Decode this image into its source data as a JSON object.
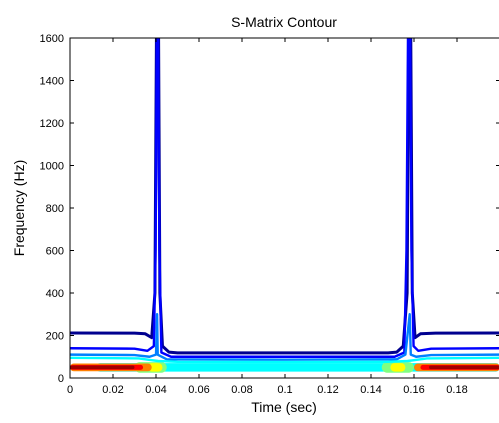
{
  "chart_data": {
    "type": "contour",
    "title": "S-Matrix Contour",
    "xlabel": "Time (sec)",
    "ylabel": "Frequency (Hz)",
    "xlim": [
      0,
      0.2
    ],
    "ylim": [
      0,
      1600
    ],
    "xticks": [
      0,
      0.02,
      0.04,
      0.06,
      0.08,
      0.1,
      0.12,
      0.14,
      0.16,
      0.18
    ],
    "xtick_labels": [
      "0",
      "0.02",
      "0.04",
      "0.06",
      "0.08",
      "0.1",
      "0.12",
      "0.14",
      "0.16",
      "0.18"
    ],
    "yticks": [
      0,
      200,
      400,
      600,
      800,
      1000,
      1200,
      1400,
      1600
    ],
    "ytick_labels": [
      "0",
      "200",
      "400",
      "600",
      "800",
      "1000",
      "1200",
      "1400",
      "1600"
    ],
    "grid": false,
    "colormap": "jet",
    "spikes": [
      {
        "time": 0.04,
        "frequency_max": 1600
      },
      {
        "time": 0.158,
        "frequency_max": 1600
      }
    ],
    "contour_lines": [
      {
        "level": 1,
        "color": "#00008f",
        "points": [
          [
            0,
            212
          ],
          [
            0.03,
            211
          ],
          [
            0.035,
            208
          ],
          [
            0.038,
            190
          ],
          [
            0.0395,
            400
          ],
          [
            0.0402,
            1600
          ]
        ]
      },
      {
        "level": 1,
        "color": "#00008f",
        "points": [
          [
            0.0412,
            1600
          ],
          [
            0.0418,
            400
          ],
          [
            0.043,
            150
          ],
          [
            0.046,
            122
          ],
          [
            0.05,
            118
          ],
          [
            0.1,
            118
          ],
          [
            0.148,
            118
          ],
          [
            0.152,
            122
          ],
          [
            0.155,
            150
          ],
          [
            0.1568,
            400
          ],
          [
            0.1575,
            1600
          ]
        ]
      },
      {
        "level": 1,
        "color": "#00008f",
        "points": [
          [
            0.1585,
            1600
          ],
          [
            0.1592,
            400
          ],
          [
            0.1605,
            190
          ],
          [
            0.163,
            208
          ],
          [
            0.17,
            211
          ],
          [
            0.2,
            212
          ]
        ]
      },
      {
        "level": 2,
        "color": "#0000ff",
        "points": [
          [
            0,
            140
          ],
          [
            0.03,
            138
          ],
          [
            0.036,
            128
          ],
          [
            0.039,
            150
          ],
          [
            0.0398,
            600
          ],
          [
            0.0404,
            1600
          ]
        ]
      },
      {
        "level": 2,
        "color": "#0000ff",
        "points": [
          [
            0.041,
            1600
          ],
          [
            0.0416,
            600
          ],
          [
            0.0425,
            120
          ],
          [
            0.047,
            100
          ],
          [
            0.1,
            100
          ],
          [
            0.151,
            100
          ],
          [
            0.1555,
            120
          ],
          [
            0.1565,
            600
          ],
          [
            0.1572,
            1600
          ]
        ]
      },
      {
        "level": 2,
        "color": "#0000ff",
        "points": [
          [
            0.1582,
            1600
          ],
          [
            0.1588,
            600
          ],
          [
            0.1598,
            150
          ],
          [
            0.162,
            128
          ],
          [
            0.168,
            138
          ],
          [
            0.2,
            140
          ]
        ]
      },
      {
        "level": 3,
        "color": "#0080ff",
        "points": [
          [
            0,
            110
          ],
          [
            0.03,
            108
          ],
          [
            0.037,
            100
          ],
          [
            0.04,
            110
          ],
          [
            0.0405,
            300
          ],
          [
            0.0408,
            110
          ],
          [
            0.045,
            88
          ],
          [
            0.1,
            86
          ],
          [
            0.152,
            88
          ],
          [
            0.156,
            110
          ],
          [
            0.158,
            300
          ],
          [
            0.1585,
            110
          ],
          [
            0.161,
            100
          ],
          [
            0.168,
            108
          ],
          [
            0.2,
            110
          ]
        ]
      },
      {
        "level": 4,
        "color": "#00ffff",
        "points": [
          [
            0,
            95
          ],
          [
            0.032,
            92
          ],
          [
            0.038,
            84
          ],
          [
            0.041,
            80
          ],
          [
            0.05,
            76
          ],
          [
            0.1,
            75
          ],
          [
            0.148,
            76
          ],
          [
            0.157,
            80
          ],
          [
            0.16,
            84
          ],
          [
            0.166,
            92
          ],
          [
            0.2,
            95
          ]
        ]
      }
    ],
    "filled_regions": [
      {
        "level": 5,
        "color": "#00ffff",
        "time_range": [
          0.012,
          0.2
        ],
        "frequency_range": [
          30,
          70
        ]
      },
      {
        "level": 6,
        "color": "#80ff80",
        "segments": [
          [
            0.03,
            0.045,
            25,
            75
          ],
          [
            0.145,
            0.16,
            25,
            75
          ]
        ]
      },
      {
        "level": 7,
        "color": "#ffff00",
        "segments": [
          [
            0.036,
            0.043,
            30,
            70
          ],
          [
            0.149,
            0.156,
            30,
            70
          ]
        ]
      },
      {
        "level": 8,
        "color": "#ff8000",
        "segments": [
          [
            0,
            0.038,
            32,
            68
          ],
          [
            0.16,
            0.2,
            32,
            68
          ]
        ]
      },
      {
        "level": 9,
        "color": "#ff0000",
        "segments": [
          [
            0,
            0.034,
            38,
            62
          ],
          [
            0.163,
            0.2,
            38,
            62
          ]
        ]
      },
      {
        "level": 10,
        "color": "#a00000",
        "segments": [
          [
            0,
            0.03,
            42,
            58
          ],
          [
            0.167,
            0.2,
            42,
            58
          ]
        ]
      }
    ]
  }
}
